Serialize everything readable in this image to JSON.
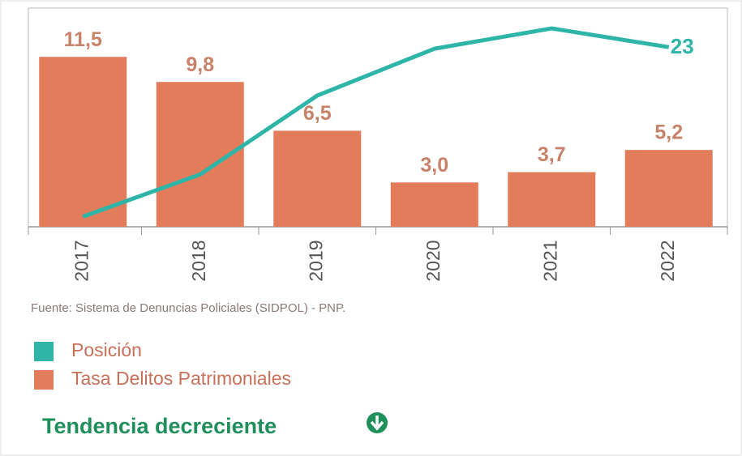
{
  "chart_data": {
    "type": "bar",
    "categories": [
      "2017",
      "2018",
      "2019",
      "2020",
      "2021",
      "2022"
    ],
    "series": [
      {
        "name": "Posición",
        "type": "line",
        "axis": "y2",
        "color": "#2fb5a8",
        "values": [
          1.3,
          6.7,
          16.8,
          22.8,
          25.4,
          23
        ],
        "value_labels": [
          null,
          null,
          null,
          null,
          null,
          "23"
        ]
      },
      {
        "name": "Tasa Delitos Patrimoniales",
        "type": "bar",
        "color": "#e27c5a",
        "values": [
          11.5,
          9.8,
          6.5,
          3.0,
          3.7,
          5.2
        ],
        "value_labels": [
          "11,5",
          "9,8",
          "6,5",
          "3,0",
          "3,7",
          "5,2"
        ]
      }
    ],
    "ylim": [
      0,
      14.8
    ],
    "y2lim": [
      0,
      28
    ],
    "source": "Fuente: Sistema de Denuncias Policiales (SIDPOL) - PNP.",
    "legend": "bottom-left"
  },
  "footer": {
    "text": "Tendencia decreciente"
  }
}
